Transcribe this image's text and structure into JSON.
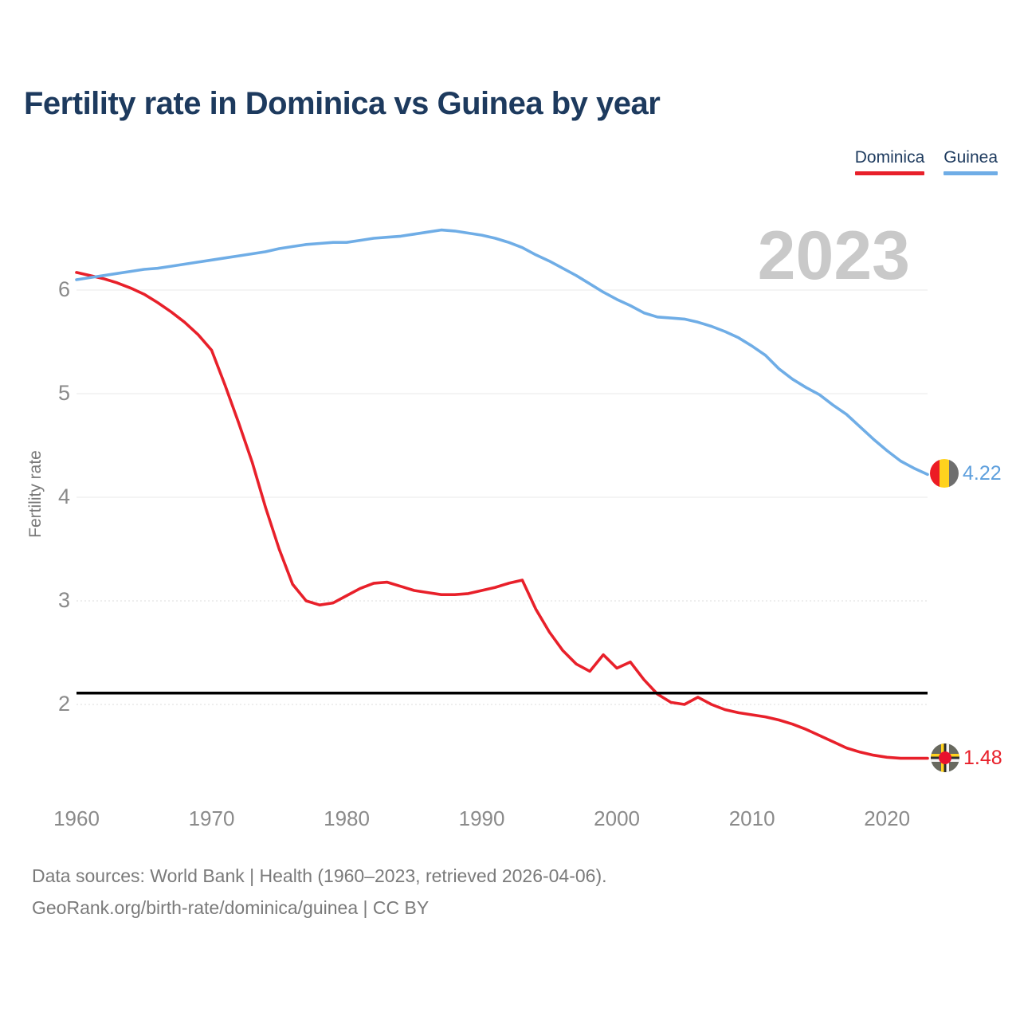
{
  "title": "Fertility rate in Dominica vs Guinea by year",
  "watermark": "2023",
  "y_axis": {
    "label": "Fertility rate"
  },
  "footer": {
    "line1": "Data sources: World Bank | Health (1960–2023, retrieved 2026-04-06).",
    "line2": "GeoRank.org/birth-rate/dominica/guinea | CC BY"
  },
  "chart_data": {
    "type": "line",
    "title": "Fertility rate in Dominica vs Guinea by year",
    "xlabel": "",
    "ylabel": "Fertility rate",
    "x_range": [
      1960,
      2023
    ],
    "y_ticks": [
      6,
      5,
      4,
      3,
      2
    ],
    "x_ticks": [
      1960,
      1970,
      1980,
      1990,
      2000,
      2010,
      2020
    ],
    "grid": true,
    "legend_position": "top-right",
    "reference_line": {
      "value": 2.11,
      "color": "#000000"
    },
    "years": [
      1960,
      1961,
      1962,
      1963,
      1964,
      1965,
      1966,
      1967,
      1968,
      1969,
      1970,
      1971,
      1972,
      1973,
      1974,
      1975,
      1976,
      1977,
      1978,
      1979,
      1980,
      1981,
      1982,
      1983,
      1984,
      1985,
      1986,
      1987,
      1988,
      1989,
      1990,
      1991,
      1992,
      1993,
      1994,
      1995,
      1996,
      1997,
      1998,
      1999,
      2000,
      2001,
      2002,
      2003,
      2004,
      2005,
      2006,
      2007,
      2008,
      2009,
      2010,
      2011,
      2012,
      2013,
      2014,
      2015,
      2016,
      2017,
      2018,
      2019,
      2020,
      2021,
      2022,
      2023
    ],
    "series": [
      {
        "name": "Dominica",
        "color": "#e8202a",
        "end_label": "1.48",
        "values": [
          6.17,
          6.14,
          6.11,
          6.07,
          6.02,
          5.96,
          5.88,
          5.79,
          5.69,
          5.57,
          5.42,
          5.08,
          4.72,
          4.34,
          3.9,
          3.5,
          3.16,
          3.0,
          2.96,
          2.98,
          3.05,
          3.12,
          3.17,
          3.18,
          3.14,
          3.1,
          3.08,
          3.06,
          3.06,
          3.07,
          3.1,
          3.13,
          3.17,
          3.2,
          2.92,
          2.7,
          2.52,
          2.39,
          2.32,
          2.48,
          2.35,
          2.41,
          2.24,
          2.1,
          2.02,
          2.0,
          2.07,
          2.0,
          1.95,
          1.92,
          1.9,
          1.88,
          1.85,
          1.81,
          1.76,
          1.7,
          1.64,
          1.58,
          1.54,
          1.51,
          1.49,
          1.48,
          1.48,
          1.48
        ]
      },
      {
        "name": "Guinea",
        "color": "#6fade6",
        "end_label": "4.22",
        "values": [
          6.1,
          6.12,
          6.14,
          6.16,
          6.18,
          6.2,
          6.21,
          6.23,
          6.25,
          6.27,
          6.29,
          6.31,
          6.33,
          6.35,
          6.37,
          6.4,
          6.42,
          6.44,
          6.45,
          6.46,
          6.46,
          6.48,
          6.5,
          6.51,
          6.52,
          6.54,
          6.56,
          6.58,
          6.57,
          6.55,
          6.53,
          6.5,
          6.46,
          6.41,
          6.34,
          6.28,
          6.21,
          6.14,
          6.06,
          5.98,
          5.91,
          5.85,
          5.78,
          5.74,
          5.73,
          5.72,
          5.69,
          5.65,
          5.6,
          5.54,
          5.46,
          5.37,
          5.24,
          5.14,
          5.06,
          4.99,
          4.89,
          4.8,
          4.68,
          4.56,
          4.45,
          4.35,
          4.28,
          4.22
        ]
      }
    ]
  }
}
